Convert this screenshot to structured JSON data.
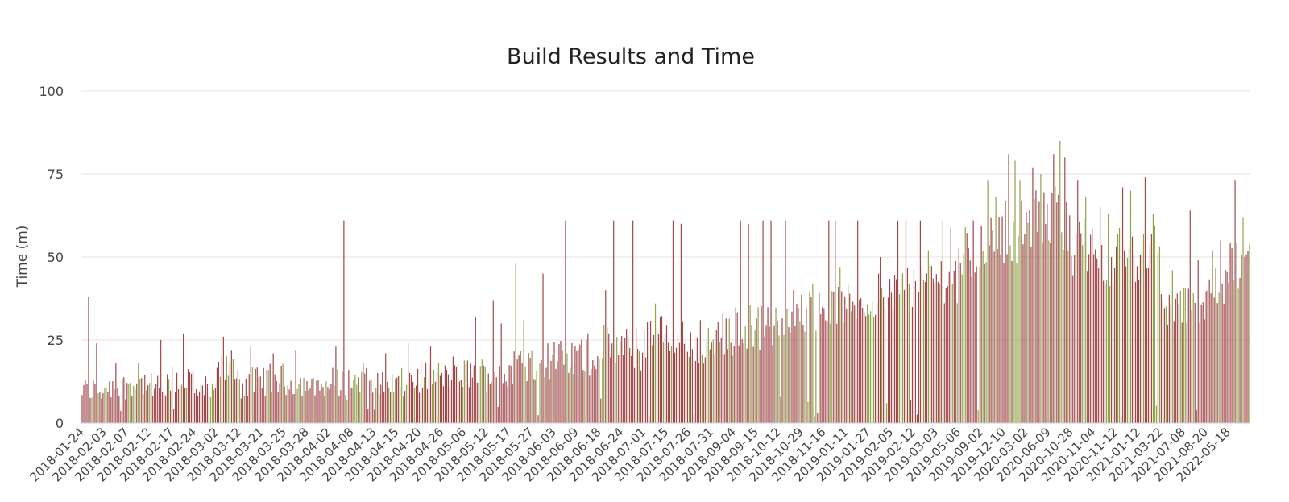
{
  "chart_data": {
    "type": "bar",
    "title": "Build Results and Time",
    "ylabel": "Time (m)",
    "xlabel": "",
    "ylim": [
      0,
      100
    ],
    "yticks": [
      0,
      25,
      50,
      75,
      100
    ],
    "grid": true,
    "legend": "none",
    "categories": [
      "2018-01-24",
      "2018-02-03",
      "2018-02-07",
      "2018-02-12",
      "2018-02-17",
      "2018-02-24",
      "2018-03-02",
      "2018-03-12",
      "2018-03-21",
      "2018-03-25",
      "2018-03-28",
      "2018-04-02",
      "2018-04-08",
      "2018-04-13",
      "2018-04-15",
      "2018-04-20",
      "2018-04-26",
      "2018-05-06",
      "2018-05-12",
      "2018-05-17",
      "2018-05-27",
      "2018-06-03",
      "2018-06-09",
      "2018-06-18",
      "2018-06-24",
      "2018-07-01",
      "2018-07-15",
      "2018-07-26",
      "2018-07-31",
      "2018-09-04",
      "2018-09-15",
      "2018-10-12",
      "2018-10-29",
      "2018-11-16",
      "2019-01-11",
      "2019-01-27",
      "2019-02-05",
      "2019-02-12",
      "2019-03-03",
      "2019-05-06",
      "2019-09-02",
      "2019-12-10",
      "2020-03-02",
      "2020-06-09",
      "2020-10-28",
      "2020-11-04",
      "2020-11-12",
      "2021-01-12",
      "2021-03-22",
      "2021-07-08",
      "2021-08-20",
      "2022-05-18"
    ],
    "series": [
      {
        "color": "#a0474a",
        "result": "failed"
      },
      {
        "color": "#8fa44a",
        "result": "passed"
      }
    ],
    "period_builds": [
      {
        "start": "2018-01-24",
        "base": 10,
        "spread": 4,
        "spikes": [
          {
            "value": 38,
            "color": "failed"
          },
          {
            "value": 24,
            "color": "failed"
          }
        ]
      },
      {
        "start": "2018-02-03",
        "base": 11,
        "spread": 4,
        "spikes": [
          {
            "value": 18,
            "color": "failed"
          }
        ]
      },
      {
        "start": "2018-02-07",
        "base": 12,
        "spread": 4,
        "spikes": [
          {
            "value": 18,
            "color": "passed"
          }
        ]
      },
      {
        "start": "2018-02-12",
        "base": 10,
        "spread": 5,
        "spikes": [
          {
            "value": 25,
            "color": "failed"
          }
        ]
      },
      {
        "start": "2018-02-17",
        "base": 13,
        "spread": 5,
        "spikes": [
          {
            "value": 27,
            "color": "failed"
          }
        ]
      },
      {
        "start": "2018-02-24",
        "base": 9,
        "spread": 3,
        "spikes": [
          {
            "value": 14,
            "color": "failed"
          }
        ]
      },
      {
        "start": "2018-03-02",
        "base": 16,
        "spread": 5,
        "spikes": [
          {
            "value": 26,
            "color": "failed"
          },
          {
            "value": 22,
            "color": "failed"
          }
        ]
      },
      {
        "start": "2018-03-12",
        "base": 12,
        "spread": 5,
        "spikes": [
          {
            "value": 23,
            "color": "failed"
          }
        ]
      },
      {
        "start": "2018-03-21",
        "base": 13,
        "spread": 5,
        "spikes": [
          {
            "value": 21,
            "color": "failed"
          }
        ]
      },
      {
        "start": "2018-03-25",
        "base": 12,
        "spread": 4,
        "spikes": [
          {
            "value": 22,
            "color": "failed"
          }
        ]
      },
      {
        "start": "2018-03-28",
        "base": 11,
        "spread": 3,
        "spikes": [
          {
            "value": 13,
            "color": "failed"
          }
        ]
      },
      {
        "start": "2018-04-02",
        "base": 12,
        "spread": 5,
        "spikes": [
          {
            "value": 23,
            "color": "failed"
          },
          {
            "value": 61,
            "color": "failed"
          }
        ]
      },
      {
        "start": "2018-04-08",
        "base": 13,
        "spread": 4,
        "spikes": [
          {
            "value": 18,
            "color": "failed"
          }
        ]
      },
      {
        "start": "2018-04-13",
        "base": 12,
        "spread": 4,
        "spikes": [
          {
            "value": 21,
            "color": "failed"
          }
        ]
      },
      {
        "start": "2018-04-15",
        "base": 13,
        "spread": 5,
        "spikes": [
          {
            "value": 24,
            "color": "failed"
          }
        ]
      },
      {
        "start": "2018-04-20",
        "base": 14,
        "spread": 5,
        "spikes": [
          {
            "value": 23,
            "color": "failed"
          }
        ]
      },
      {
        "start": "2018-04-26",
        "base": 14,
        "spread": 4,
        "spikes": [
          {
            "value": 20,
            "color": "failed"
          }
        ]
      },
      {
        "start": "2018-05-06",
        "base": 15,
        "spread": 5,
        "spikes": [
          {
            "value": 32,
            "color": "failed"
          }
        ]
      },
      {
        "start": "2018-05-12",
        "base": 15,
        "spread": 6,
        "spikes": [
          {
            "value": 37,
            "color": "failed"
          },
          {
            "value": 30,
            "color": "failed"
          }
        ]
      },
      {
        "start": "2018-05-17",
        "base": 17,
        "spread": 6,
        "spikes": [
          {
            "value": 48,
            "color": "passed"
          },
          {
            "value": 31,
            "color": "passed"
          }
        ]
      },
      {
        "start": "2018-05-27",
        "base": 19,
        "spread": 6,
        "spikes": [
          {
            "value": 45,
            "color": "failed"
          }
        ]
      },
      {
        "start": "2018-06-03",
        "base": 19,
        "spread": 6,
        "spikes": [
          {
            "value": 61,
            "color": "failed"
          }
        ]
      },
      {
        "start": "2018-06-09",
        "base": 20,
        "spread": 6,
        "spikes": [
          {
            "value": 27,
            "color": "failed"
          }
        ]
      },
      {
        "start": "2018-06-18",
        "base": 23,
        "spread": 7,
        "spikes": [
          {
            "value": 40,
            "color": "failed"
          },
          {
            "value": 61,
            "color": "failed"
          }
        ]
      },
      {
        "start": "2018-06-24",
        "base": 22,
        "spread": 7,
        "spikes": [
          {
            "value": 61,
            "color": "failed"
          }
        ]
      },
      {
        "start": "2018-07-01",
        "base": 26,
        "spread": 7,
        "spikes": [
          {
            "value": 36,
            "color": "passed"
          }
        ]
      },
      {
        "start": "2018-07-15",
        "base": 25,
        "spread": 7,
        "spikes": [
          {
            "value": 61,
            "color": "failed"
          },
          {
            "value": 60,
            "color": "failed"
          }
        ]
      },
      {
        "start": "2018-07-26",
        "base": 23,
        "spread": 6,
        "spikes": [
          {
            "value": 31,
            "color": "failed"
          }
        ]
      },
      {
        "start": "2018-07-31",
        "base": 25,
        "spread": 7,
        "spikes": [
          {
            "value": 33,
            "color": "failed"
          }
        ]
      },
      {
        "start": "2018-09-04",
        "base": 29,
        "spread": 7,
        "spikes": [
          {
            "value": 61,
            "color": "failed"
          },
          {
            "value": 60,
            "color": "failed"
          }
        ]
      },
      {
        "start": "2018-09-15",
        "base": 29,
        "spread": 7,
        "spikes": [
          {
            "value": 61,
            "color": "failed"
          },
          {
            "value": 61,
            "color": "failed"
          }
        ]
      },
      {
        "start": "2018-10-12",
        "base": 30,
        "spread": 7,
        "spikes": [
          {
            "value": 61,
            "color": "failed"
          },
          {
            "value": 40,
            "color": "failed"
          }
        ]
      },
      {
        "start": "2018-10-29",
        "base": 34,
        "spread": 7,
        "spikes": [
          {
            "value": 42,
            "color": "passed"
          }
        ]
      },
      {
        "start": "2018-11-16",
        "base": 35,
        "spread": 7,
        "spikes": [
          {
            "value": 61,
            "color": "failed"
          },
          {
            "value": 61,
            "color": "failed"
          },
          {
            "value": 47,
            "color": "passed"
          }
        ]
      },
      {
        "start": "2019-01-11",
        "base": 36,
        "spread": 6,
        "spikes": [
          {
            "value": 61,
            "color": "failed"
          }
        ]
      },
      {
        "start": "2019-01-27",
        "base": 38,
        "spread": 7,
        "spikes": [
          {
            "value": 50,
            "color": "failed"
          }
        ]
      },
      {
        "start": "2019-02-05",
        "base": 41,
        "spread": 7,
        "spikes": [
          {
            "value": 61,
            "color": "failed"
          },
          {
            "value": 61,
            "color": "failed"
          }
        ]
      },
      {
        "start": "2019-02-12",
        "base": 43,
        "spread": 7,
        "spikes": [
          {
            "value": 61,
            "color": "failed"
          },
          {
            "value": 52,
            "color": "passed"
          }
        ]
      },
      {
        "start": "2019-03-03",
        "base": 44,
        "spread": 8,
        "spikes": [
          {
            "value": 61,
            "color": "passed"
          },
          {
            "value": 59,
            "color": "failed"
          }
        ]
      },
      {
        "start": "2019-05-06",
        "base": 50,
        "spread": 8,
        "spikes": [
          {
            "value": 59,
            "color": "passed"
          },
          {
            "value": 61,
            "color": "failed"
          }
        ]
      },
      {
        "start": "2019-09-02",
        "base": 55,
        "spread": 9,
        "spikes": [
          {
            "value": 73,
            "color": "passed"
          },
          {
            "value": 68,
            "color": "passed"
          }
        ]
      },
      {
        "start": "2019-12-10",
        "base": 58,
        "spread": 10,
        "spikes": [
          {
            "value": 81,
            "color": "failed"
          },
          {
            "value": 79,
            "color": "passed"
          },
          {
            "value": 73,
            "color": "passed"
          }
        ]
      },
      {
        "start": "2020-03-02",
        "base": 61,
        "spread": 10,
        "spikes": [
          {
            "value": 77,
            "color": "failed"
          },
          {
            "value": 75,
            "color": "passed"
          }
        ]
      },
      {
        "start": "2020-06-09",
        "base": 62,
        "spread": 10,
        "spikes": [
          {
            "value": 81,
            "color": "failed"
          },
          {
            "value": 85,
            "color": "passed"
          },
          {
            "value": 80,
            "color": "failed"
          }
        ]
      },
      {
        "start": "2020-10-28",
        "base": 53,
        "spread": 9,
        "spikes": [
          {
            "value": 73,
            "color": "failed"
          },
          {
            "value": 68,
            "color": "passed"
          }
        ]
      },
      {
        "start": "2020-11-04",
        "base": 49,
        "spread": 8,
        "spikes": [
          {
            "value": 65,
            "color": "failed"
          },
          {
            "value": 63,
            "color": "passed"
          }
        ]
      },
      {
        "start": "2020-11-12",
        "base": 50,
        "spread": 9,
        "spikes": [
          {
            "value": 71,
            "color": "failed"
          },
          {
            "value": 70,
            "color": "passed"
          }
        ]
      },
      {
        "start": "2021-01-12",
        "base": 52,
        "spread": 9,
        "spikes": [
          {
            "value": 74,
            "color": "failed"
          },
          {
            "value": 63,
            "color": "passed"
          }
        ]
      },
      {
        "start": "2021-03-22",
        "base": 35,
        "spread": 6,
        "spikes": [
          {
            "value": 46,
            "color": "passed"
          }
        ]
      },
      {
        "start": "2021-07-08",
        "base": 36,
        "spread": 6,
        "spikes": [
          {
            "value": 64,
            "color": "failed"
          },
          {
            "value": 49,
            "color": "failed"
          }
        ]
      },
      {
        "start": "2021-08-20",
        "base": 40,
        "spread": 7,
        "spikes": [
          {
            "value": 52,
            "color": "passed"
          },
          {
            "value": 55,
            "color": "failed"
          }
        ]
      },
      {
        "start": "2022-05-18",
        "base": 48,
        "spread": 9,
        "spikes": [
          {
            "value": 73,
            "color": "failed"
          },
          {
            "value": 62,
            "color": "passed"
          }
        ]
      }
    ]
  }
}
